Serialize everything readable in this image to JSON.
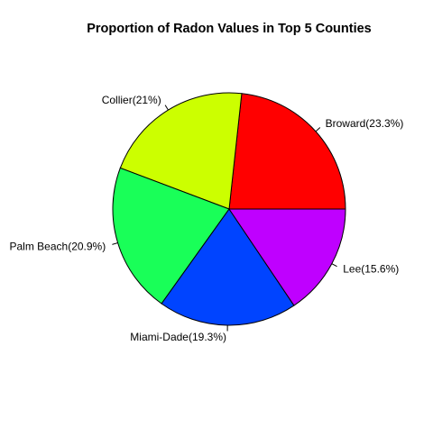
{
  "chart_data": {
    "type": "pie",
    "title": "Proportion of Radon Values in Top 5 Counties",
    "slices": [
      {
        "label": "Broward(23.3%)",
        "category": "Broward",
        "value": 23.3,
        "color": "#ff0000"
      },
      {
        "label": "Collier(21%)",
        "category": "Collier",
        "value": 21.0,
        "color": "#ccff00"
      },
      {
        "label": "Palm Beach(20.9%)",
        "category": "Palm Beach",
        "value": 20.9,
        "color": "#19ff58"
      },
      {
        "label": "Miami-Dade(19.3%)",
        "category": "Miami-Dade",
        "value": 19.3,
        "color": "#0044ff"
      },
      {
        "label": "Lee(15.6%)",
        "category": "Lee",
        "value": 15.6,
        "color": "#bf00ff"
      }
    ],
    "start_angle": 0,
    "direction": "counterclockwise",
    "legend": "none"
  }
}
